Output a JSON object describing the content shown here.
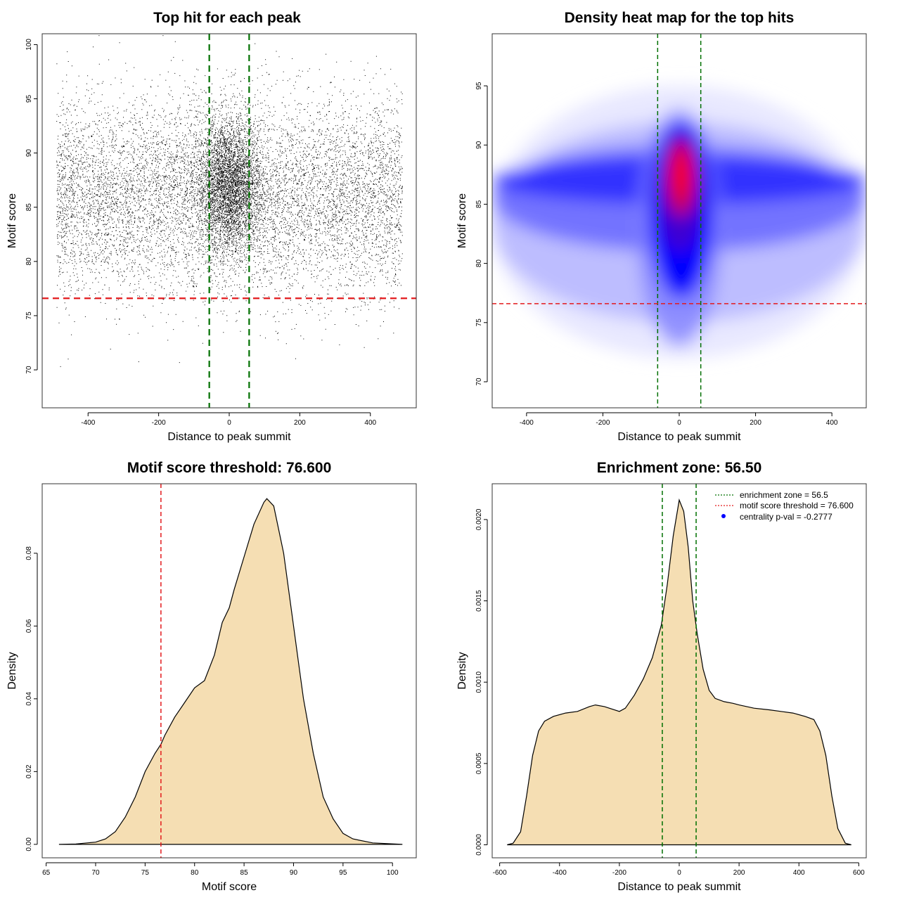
{
  "chart_data": [
    {
      "type": "scatter",
      "title": "Top hit for each peak",
      "xlabel": "Distance to peak summit",
      "ylabel": "Motif score",
      "xlim": [
        -530,
        530
      ],
      "ylim": [
        66.5,
        101
      ],
      "xticks": [
        -400,
        -200,
        0,
        200,
        400
      ],
      "yticks": [
        70,
        75,
        80,
        85,
        90,
        95,
        100
      ],
      "hlines": [
        {
          "y": 76.6,
          "color": "#e31a1c",
          "style": "dashed"
        }
      ],
      "vlines": [
        {
          "x": -56.5,
          "color": "#007000",
          "style": "dashed"
        },
        {
          "x": 56.5,
          "color": "#007000",
          "style": "dashed"
        }
      ],
      "points_summary": {
        "x_range": [
          -490,
          490
        ],
        "background_score_mean": 86,
        "background_score_sd": 4.5,
        "central_cluster": {
          "x_center": 0,
          "x_sd": 45,
          "score_center": 87,
          "score_sd": 3
        }
      }
    },
    {
      "type": "heatmap",
      "title": "Density heat map for the top hits",
      "xlabel": "Distance to peak summit",
      "ylabel": "Motif score",
      "xlim": [
        -490,
        490
      ],
      "ylim": [
        67.8,
        99.4
      ],
      "xticks": [
        -400,
        -200,
        0,
        200,
        400
      ],
      "yticks": [
        70,
        75,
        80,
        85,
        90,
        95
      ],
      "colors": [
        "#ffffff",
        "#0000ff",
        "#ff0000"
      ],
      "peak": {
        "x": 0,
        "y": 87.5
      },
      "hlines": [
        {
          "y": 76.6,
          "color": "#e31a1c",
          "style": "dashed"
        }
      ],
      "vlines": [
        {
          "x": -56.5,
          "color": "#007000",
          "style": "dashed"
        },
        {
          "x": 56.5,
          "color": "#007000",
          "style": "dashed"
        }
      ]
    },
    {
      "type": "area",
      "title": "Motif score threshold: 76.600",
      "xlabel": "Motif score",
      "ylabel": "Density",
      "xlim": [
        64.6,
        102.4
      ],
      "ylim": [
        -0.0037,
        0.0991
      ],
      "xticks": [
        65,
        70,
        75,
        80,
        85,
        90,
        95,
        100
      ],
      "yticks": [
        0.0,
        0.02,
        0.04,
        0.06,
        0.08
      ],
      "ytick_labels": [
        "0.00",
        "0.02",
        "0.04",
        "0.06",
        "0.08"
      ],
      "fill": "#f5deb3",
      "x": [
        66.3,
        68,
        70,
        71,
        72,
        73,
        74,
        75,
        76,
        76.6,
        77,
        78,
        79,
        80,
        81,
        82,
        82.8,
        83.5,
        84,
        85,
        86,
        87,
        87.3,
        88,
        89,
        90,
        90.5,
        91,
        92,
        93,
        94,
        95,
        96,
        98,
        101
      ],
      "y": [
        0.0,
        0.0001,
        0.0006,
        0.0015,
        0.0035,
        0.0075,
        0.013,
        0.02,
        0.025,
        0.0275,
        0.03,
        0.035,
        0.039,
        0.043,
        0.045,
        0.052,
        0.061,
        0.065,
        0.07,
        0.079,
        0.088,
        0.094,
        0.095,
        0.093,
        0.08,
        0.06,
        0.05,
        0.04,
        0.025,
        0.013,
        0.007,
        0.003,
        0.0015,
        0.0004,
        0.0
      ]
    },
    {
      "type": "area",
      "title": "Enrichment zone: 56.50",
      "xlabel": "Distance to peak summit",
      "ylabel": "Density",
      "xlim": [
        -625,
        625
      ],
      "ylim": [
        -8e-05,
        0.00222
      ],
      "xticks": [
        -600,
        -400,
        -200,
        0,
        200,
        400,
        600
      ],
      "yticks": [
        0.0,
        0.0005,
        0.001,
        0.0015,
        0.002
      ],
      "ytick_labels": [
        "0.0000",
        "0.0005",
        "0.0010",
        "0.0015",
        "0.0020"
      ],
      "fill": "#f5deb3",
      "x": [
        -575,
        -555,
        -530,
        -510,
        -490,
        -470,
        -450,
        -420,
        -380,
        -340,
        -300,
        -280,
        -250,
        -200,
        -180,
        -150,
        -120,
        -90,
        -60,
        -40,
        -20,
        0,
        15,
        30,
        45,
        60,
        80,
        100,
        120,
        150,
        180,
        200,
        250,
        300,
        340,
        380,
        420,
        450,
        470,
        490,
        510,
        530,
        555,
        575
      ],
      "y": [
        0.0,
        1e-05,
        8e-05,
        0.0003,
        0.00055,
        0.0007,
        0.00076,
        0.00079,
        0.00081,
        0.00082,
        0.00085,
        0.00086,
        0.00085,
        0.00082,
        0.00084,
        0.00092,
        0.00102,
        0.00115,
        0.00135,
        0.0016,
        0.0019,
        0.00212,
        0.00205,
        0.00183,
        0.0015,
        0.0013,
        0.00108,
        0.00095,
        0.0009,
        0.00088,
        0.00087,
        0.00086,
        0.00084,
        0.00083,
        0.00082,
        0.00081,
        0.00079,
        0.00077,
        0.0007,
        0.00055,
        0.0003,
        0.0001,
        1e-05,
        0.0
      ],
      "vlines": [
        {
          "x": -56.5,
          "color": "#007000",
          "style": "dashed"
        },
        {
          "x": 56.5,
          "color": "#007000",
          "style": "dashed"
        }
      ],
      "legend": {
        "position": "top-right",
        "items": [
          {
            "label": "enrichment zone = 56.5",
            "color": "#007000",
            "symbol": "dotted-line"
          },
          {
            "label": "motif score threshold = 76.600",
            "color": "#e31a1c",
            "symbol": "dotted-line"
          },
          {
            "label": "centrality p-val = -0.2777",
            "color": "#0000ff",
            "symbol": "dot"
          }
        ]
      }
    }
  ]
}
